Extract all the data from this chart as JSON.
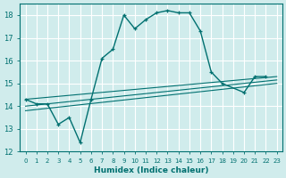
{
  "xlabel": "Humidex (Indice chaleur)",
  "background_color": "#d0ecec",
  "grid_color": "#ffffff",
  "line_color": "#007070",
  "xlim": [
    -0.5,
    23.5
  ],
  "ylim": [
    12,
    18.5
  ],
  "yticks": [
    12,
    13,
    14,
    15,
    16,
    17,
    18
  ],
  "xticks": [
    0,
    1,
    2,
    3,
    4,
    5,
    6,
    7,
    8,
    9,
    10,
    11,
    12,
    13,
    14,
    15,
    16,
    17,
    18,
    19,
    20,
    21,
    22,
    23
  ],
  "series1_x": [
    0,
    1,
    2,
    3,
    4,
    5,
    6,
    7,
    8,
    9,
    10,
    11,
    12,
    13,
    14,
    15,
    16,
    17,
    18,
    20,
    21,
    22
  ],
  "series1_y": [
    14.3,
    14.1,
    14.1,
    13.2,
    13.5,
    12.4,
    14.3,
    16.1,
    16.5,
    18.0,
    17.4,
    17.8,
    18.1,
    18.2,
    18.1,
    18.1,
    17.3,
    15.5,
    15.0,
    14.6,
    15.3,
    15.3
  ],
  "series2_x": [
    0,
    23
  ],
  "series2_y": [
    14.3,
    15.3
  ],
  "series3_x": [
    0,
    23
  ],
  "series3_y": [
    14.0,
    15.15
  ],
  "series4_x": [
    0,
    23
  ],
  "series4_y": [
    13.8,
    15.0
  ]
}
